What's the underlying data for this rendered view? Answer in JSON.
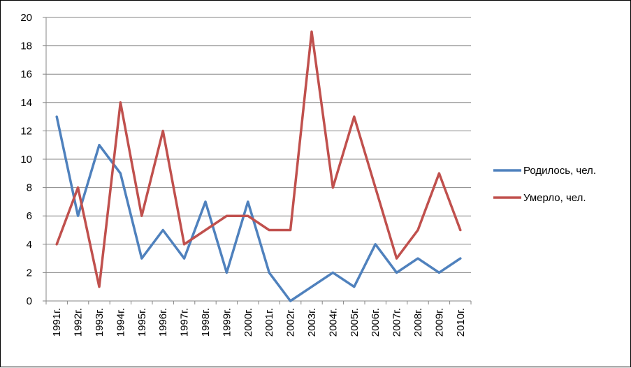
{
  "chart_data": {
    "type": "line",
    "categories": [
      "1991г.",
      "1992г.",
      "1993г.",
      "1994г.",
      "1995г.",
      "1996г.",
      "1997г.",
      "1998г.",
      "1999г.",
      "2000г.",
      "2001г.",
      "2002г.",
      "2003г.",
      "2004г.",
      "2005г.",
      "2006г.",
      "2007г.",
      "2008г.",
      "2009г.",
      "2010г."
    ],
    "series": [
      {
        "name": "Родилось, чел.",
        "color": "#4F81BD",
        "values": [
          13,
          6,
          11,
          9,
          3,
          5,
          3,
          7,
          2,
          7,
          2,
          0,
          1,
          2,
          1,
          4,
          2,
          3,
          2,
          3
        ]
      },
      {
        "name": "Умерло, чел.",
        "color": "#C0504D",
        "values": [
          4,
          8,
          1,
          14,
          6,
          12,
          4,
          5,
          6,
          6,
          5,
          5,
          19,
          8,
          13,
          8,
          3,
          5,
          9,
          5
        ]
      }
    ],
    "yticks": [
      "0",
      "2",
      "4",
      "6",
      "8",
      "10",
      "12",
      "14",
      "16",
      "18",
      "20"
    ],
    "ylim": [
      0,
      20
    ],
    "grid": true,
    "legend": "right"
  }
}
